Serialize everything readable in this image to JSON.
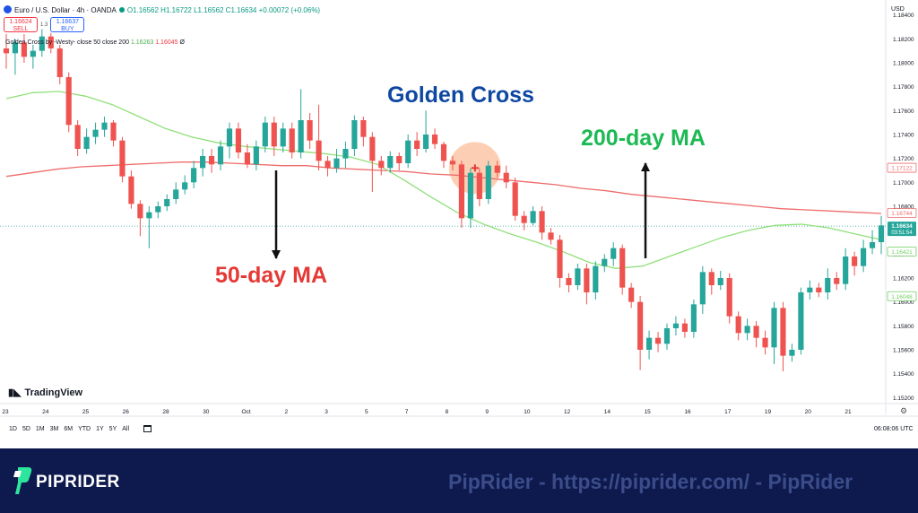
{
  "header": {
    "symbol": "Euro / U.S. Dollar · 4h · OANDA",
    "ohlc": "O1.16562 H1.16722 L1.16562 C1.16634 +0.00072 (+0.06%)",
    "sell_price": "1.16624",
    "sell_label": "SELL",
    "spread": "1.3",
    "buy_price": "1.16637",
    "buy_label": "BUY",
    "indicator_name": "Golden Cross by -Westy- close 50 close 200",
    "indicator_val1": "1.16263",
    "indicator_val2": "1.16045",
    "indicator_symbol": "Ø",
    "currency": "USD"
  },
  "annotations": {
    "golden_cross": "Golden Cross",
    "ma200": "200-day MA",
    "ma50": "50-day MA"
  },
  "colors": {
    "bull": "#26a69a",
    "bear": "#ef5350",
    "ma50": "#90e07a",
    "ma200": "#ef6c6c",
    "cross_circle": "#fcc7a8",
    "golden_cross_text": "#0d47a1",
    "ma200_text": "#1db954",
    "ma50_text": "#e53935"
  },
  "tradingview_logo": "TradingView",
  "timeframes": [
    "1D",
    "5D",
    "1M",
    "3M",
    "6M",
    "YTD",
    "1Y",
    "5Y",
    "All"
  ],
  "time_utc": "06:08:06 UTC",
  "footer": {
    "brand": "PIPRIDER",
    "watermark": "PipRider - https://piprider.com/ - PipRider"
  },
  "chart_data": {
    "type": "candlestick",
    "ylim": [
      1.1515,
      1.1845
    ],
    "y_ticks": [
      "1.18400",
      "1.18200",
      "1.18000",
      "1.17800",
      "1.17600",
      "1.17400",
      "1.17200",
      "1.17000",
      "1.16800",
      "1.16600",
      "1.16400",
      "1.16200",
      "1.16000",
      "1.15800",
      "1.15600",
      "1.15400",
      "1.15200"
    ],
    "x_ticks": [
      "23",
      "24",
      "25",
      "26",
      "28",
      "30",
      "Oct",
      "2",
      "3",
      "5",
      "7",
      "8",
      "9",
      "10",
      "12",
      "14",
      "15",
      "16",
      "17",
      "19",
      "20",
      "21"
    ],
    "price_labels": [
      {
        "text": "1.17122",
        "value": 1.17122,
        "type": "ma200"
      },
      {
        "text": "1.16744",
        "value": 1.16744,
        "type": "ma200"
      },
      {
        "text": "1.16634",
        "subtext": "03:51:54",
        "value": 1.16634,
        "type": "last"
      },
      {
        "text": "1.16421",
        "value": 1.16421,
        "type": "ma50"
      },
      {
        "text": "1.16048",
        "value": 1.16048,
        "type": "ma50"
      }
    ],
    "last_price": 1.16634,
    "golden_cross_point": {
      "x": 52.5,
      "y": 1.1712
    },
    "candle_count": 99,
    "candles": [
      [
        1.1812,
        1.1808,
        1.1824,
        1.1795
      ],
      [
        1.1808,
        1.1817,
        1.182,
        1.179
      ],
      [
        1.1817,
        1.1805,
        1.1824,
        1.18
      ],
      [
        1.1805,
        1.181,
        1.1815,
        1.1795
      ],
      [
        1.181,
        1.1822,
        1.1828,
        1.1805
      ],
      [
        1.1822,
        1.1812,
        1.1825,
        1.1808
      ],
      [
        1.1812,
        1.1788,
        1.1815,
        1.1782
      ],
      [
        1.1788,
        1.1748,
        1.1792,
        1.1742
      ],
      [
        1.1748,
        1.1728,
        1.1752,
        1.1722
      ],
      [
        1.1728,
        1.1738,
        1.1745,
        1.1724
      ],
      [
        1.1738,
        1.1744,
        1.175,
        1.1732
      ],
      [
        1.1744,
        1.175,
        1.1755,
        1.1738
      ],
      [
        1.175,
        1.1735,
        1.1752,
        1.173
      ],
      [
        1.1735,
        1.1705,
        1.1738,
        1.17
      ],
      [
        1.1705,
        1.1682,
        1.171,
        1.1678
      ],
      [
        1.1682,
        1.167,
        1.1685,
        1.1655
      ],
      [
        1.167,
        1.1675,
        1.168,
        1.1645
      ],
      [
        1.1675,
        1.168,
        1.1684,
        1.167
      ],
      [
        1.168,
        1.1686,
        1.169,
        1.1676
      ],
      [
        1.1686,
        1.1694,
        1.17,
        1.1682
      ],
      [
        1.1694,
        1.17,
        1.1706,
        1.169
      ],
      [
        1.17,
        1.1712,
        1.1718,
        1.1695
      ],
      [
        1.1712,
        1.1722,
        1.1728,
        1.1705
      ],
      [
        1.1722,
        1.1715,
        1.1728,
        1.1708
      ],
      [
        1.1715,
        1.173,
        1.1735,
        1.171
      ],
      [
        1.173,
        1.1745,
        1.175,
        1.172
      ],
      [
        1.1745,
        1.1725,
        1.175,
        1.172
      ],
      [
        1.1725,
        1.1715,
        1.1732,
        1.1712
      ],
      [
        1.1715,
        1.173,
        1.1735,
        1.171
      ],
      [
        1.173,
        1.175,
        1.1755,
        1.1725
      ],
      [
        1.175,
        1.173,
        1.1755,
        1.1722
      ],
      [
        1.173,
        1.1745,
        1.175,
        1.1725
      ],
      [
        1.1745,
        1.1725,
        1.175,
        1.172
      ],
      [
        1.1725,
        1.1752,
        1.1778,
        1.172
      ],
      [
        1.1752,
        1.1735,
        1.1758,
        1.1728
      ],
      [
        1.1735,
        1.1718,
        1.1765,
        1.171
      ],
      [
        1.1718,
        1.1712,
        1.1722,
        1.1705
      ],
      [
        1.1712,
        1.172,
        1.1728,
        1.1708
      ],
      [
        1.172,
        1.1728,
        1.1734,
        1.1712
      ],
      [
        1.1728,
        1.1752,
        1.1756,
        1.1722
      ],
      [
        1.1752,
        1.1738,
        1.1755,
        1.173
      ],
      [
        1.1738,
        1.1718,
        1.1742,
        1.1692
      ],
      [
        1.1718,
        1.1712,
        1.1722,
        1.1706
      ],
      [
        1.1712,
        1.1722,
        1.1726,
        1.1708
      ],
      [
        1.1722,
        1.1716,
        1.1725,
        1.171
      ],
      [
        1.1716,
        1.1735,
        1.174,
        1.1712
      ],
      [
        1.1735,
        1.1728,
        1.1742,
        1.1722
      ],
      [
        1.1728,
        1.174,
        1.176,
        1.1725
      ],
      [
        1.174,
        1.1732,
        1.1745,
        1.1728
      ],
      [
        1.1732,
        1.1718,
        1.1734,
        1.1712
      ],
      [
        1.1718,
        1.1715,
        1.1722,
        1.171
      ],
      [
        1.1715,
        1.167,
        1.1718,
        1.1662
      ],
      [
        1.167,
        1.1708,
        1.1712,
        1.1662
      ],
      [
        1.1708,
        1.1686,
        1.1712,
        1.168
      ],
      [
        1.1686,
        1.1714,
        1.1718,
        1.1682
      ],
      [
        1.1714,
        1.1708,
        1.1718,
        1.1704
      ],
      [
        1.1708,
        1.17,
        1.1714,
        1.1695
      ],
      [
        1.17,
        1.1672,
        1.1704,
        1.1668
      ],
      [
        1.1672,
        1.1666,
        1.1676,
        1.166
      ],
      [
        1.1666,
        1.1676,
        1.168,
        1.1664
      ],
      [
        1.1676,
        1.1658,
        1.168,
        1.1652
      ],
      [
        1.1658,
        1.1652,
        1.1662,
        1.1648
      ],
      [
        1.1652,
        1.162,
        1.1656,
        1.1612
      ],
      [
        1.162,
        1.1614,
        1.1624,
        1.1608
      ],
      [
        1.1614,
        1.1628,
        1.1632,
        1.161
      ],
      [
        1.1628,
        1.1608,
        1.1632,
        1.1598
      ],
      [
        1.1608,
        1.163,
        1.1634,
        1.1602
      ],
      [
        1.163,
        1.1636,
        1.164,
        1.1625
      ],
      [
        1.1636,
        1.1645,
        1.165,
        1.163
      ],
      [
        1.1645,
        1.1612,
        1.1648,
        1.1606
      ],
      [
        1.1612,
        1.16,
        1.1616,
        1.1595
      ],
      [
        1.16,
        1.156,
        1.1605,
        1.1543
      ],
      [
        1.156,
        1.157,
        1.1576,
        1.1552
      ],
      [
        1.157,
        1.1565,
        1.1575,
        1.1558
      ],
      [
        1.1565,
        1.1578,
        1.1582,
        1.156
      ],
      [
        1.1578,
        1.1582,
        1.1588,
        1.1572
      ],
      [
        1.1582,
        1.1575,
        1.1586,
        1.157
      ],
      [
        1.1575,
        1.1598,
        1.1602,
        1.157
      ],
      [
        1.1598,
        1.1625,
        1.163,
        1.159
      ],
      [
        1.1625,
        1.1614,
        1.1628,
        1.1606
      ],
      [
        1.1614,
        1.162,
        1.1626,
        1.161
      ],
      [
        1.162,
        1.1588,
        1.1624,
        1.1582
      ],
      [
        1.1588,
        1.1574,
        1.1592,
        1.1568
      ],
      [
        1.1574,
        1.158,
        1.1586,
        1.1568
      ],
      [
        1.158,
        1.157,
        1.1584,
        1.1562
      ],
      [
        1.157,
        1.1562,
        1.1576,
        1.1556
      ],
      [
        1.1562,
        1.1595,
        1.16,
        1.1548
      ],
      [
        1.1595,
        1.1555,
        1.16,
        1.1542
      ],
      [
        1.1555,
        1.156,
        1.1565,
        1.155
      ],
      [
        1.156,
        1.1608,
        1.1612,
        1.1556
      ],
      [
        1.1608,
        1.1612,
        1.1618,
        1.1602
      ],
      [
        1.1612,
        1.1608,
        1.1616,
        1.1604
      ],
      [
        1.1608,
        1.162,
        1.1628,
        1.1602
      ],
      [
        1.162,
        1.1615,
        1.1625,
        1.161
      ],
      [
        1.1615,
        1.1638,
        1.1645,
        1.161
      ],
      [
        1.1638,
        1.163,
        1.1642,
        1.1622
      ],
      [
        1.163,
        1.1645,
        1.1652,
        1.1625
      ],
      [
        1.1645,
        1.165,
        1.166,
        1.164
      ],
      [
        1.165,
        1.1664,
        1.1672,
        1.164
      ]
    ],
    "ma200": [
      1.1705,
      1.1708,
      1.1711,
      1.1713,
      1.1714,
      1.1715,
      1.1716,
      1.1717,
      1.1717,
      1.1716,
      1.1715,
      1.1714,
      1.1714,
      1.1712,
      1.1711,
      1.171,
      1.1709,
      1.1707,
      1.1706,
      1.1704,
      1.1702,
      1.17,
      1.1698,
      1.1695,
      1.1693,
      1.169,
      1.1688,
      1.1686,
      1.1684,
      1.1682,
      1.168,
      1.1678,
      1.1677,
      1.1676,
      1.1675,
      1.1674
    ],
    "ma50": [
      1.177,
      1.1775,
      1.1776,
      1.1772,
      1.1765,
      1.1755,
      1.1745,
      1.1738,
      1.1733,
      1.173,
      1.1728,
      1.1726,
      1.1724,
      1.1721,
      1.1715,
      1.1702,
      1.1688,
      1.1675,
      1.1665,
      1.1657,
      1.165,
      1.1642,
      1.1633,
      1.1628,
      1.163,
      1.1638,
      1.1646,
      1.1654,
      1.166,
      1.1664,
      1.1665,
      1.1662,
      1.1657,
      1.1652
    ]
  }
}
